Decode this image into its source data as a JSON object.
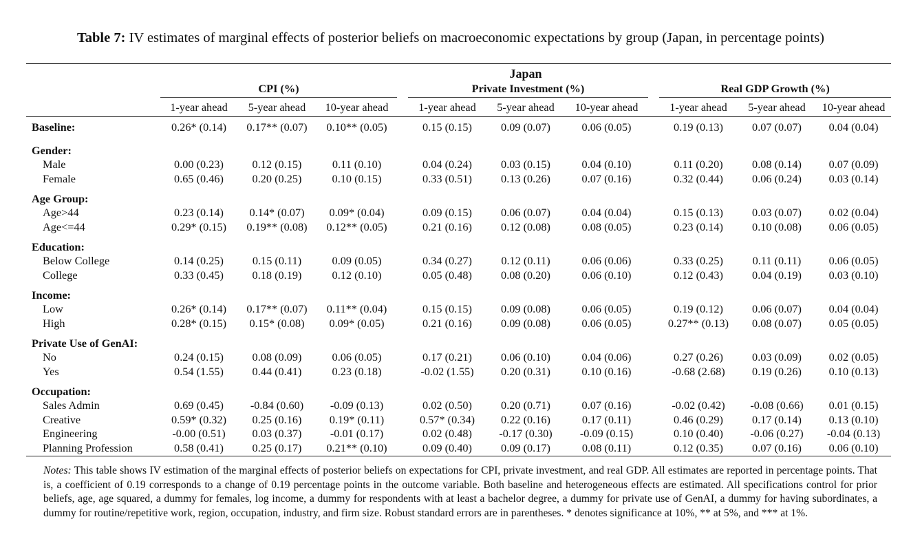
{
  "caption": {
    "label": "Table 7:",
    "text": "IV estimates of marginal effects of posterior beliefs on macroeconomic expectations by group (Japan, in percentage points)"
  },
  "header": {
    "country": "Japan",
    "groups": [
      "CPI (%)",
      "Private Investment (%)",
      "Real GDP Growth (%)"
    ],
    "horizons": [
      "1-year ahead",
      "5-year ahead",
      "10-year ahead",
      "1-year ahead",
      "5-year ahead",
      "10-year ahead",
      "1-year ahead",
      "5-year ahead",
      "10-year ahead"
    ]
  },
  "baseline": {
    "label": "Baseline:",
    "values": [
      "0.26* (0.14)",
      "0.17** (0.07)",
      "0.10** (0.05)",
      "0.15 (0.15)",
      "0.09 (0.07)",
      "0.06 (0.05)",
      "0.19 (0.13)",
      "0.07 (0.07)",
      "0.04 (0.04)"
    ]
  },
  "sections": [
    {
      "title": "Gender:",
      "rows": [
        {
          "label": "Male",
          "values": [
            "0.00 (0.23)",
            "0.12 (0.15)",
            "0.11 (0.10)",
            "0.04 (0.24)",
            "0.03 (0.15)",
            "0.04 (0.10)",
            "0.11 (0.20)",
            "0.08 (0.14)",
            "0.07 (0.09)"
          ]
        },
        {
          "label": "Female",
          "values": [
            "0.65 (0.46)",
            "0.20 (0.25)",
            "0.10 (0.15)",
            "0.33 (0.51)",
            "0.13 (0.26)",
            "0.07 (0.16)",
            "0.32 (0.44)",
            "0.06 (0.24)",
            "0.03 (0.14)"
          ]
        }
      ]
    },
    {
      "title": "Age Group:",
      "rows": [
        {
          "label": "Age>44",
          "values": [
            "0.23 (0.14)",
            "0.14* (0.07)",
            "0.09* (0.04)",
            "0.09 (0.15)",
            "0.06 (0.07)",
            "0.04 (0.04)",
            "0.15 (0.13)",
            "0.03 (0.07)",
            "0.02 (0.04)"
          ]
        },
        {
          "label": "Age<=44",
          "values": [
            "0.29* (0.15)",
            "0.19** (0.08)",
            "0.12** (0.05)",
            "0.21 (0.16)",
            "0.12 (0.08)",
            "0.08 (0.05)",
            "0.23 (0.14)",
            "0.10 (0.08)",
            "0.06 (0.05)"
          ]
        }
      ]
    },
    {
      "title": "Education:",
      "rows": [
        {
          "label": "Below College",
          "values": [
            "0.14 (0.25)",
            "0.15 (0.11)",
            "0.09 (0.05)",
            "0.34 (0.27)",
            "0.12 (0.11)",
            "0.06 (0.06)",
            "0.33 (0.25)",
            "0.11 (0.11)",
            "0.06 (0.05)"
          ]
        },
        {
          "label": "College",
          "values": [
            "0.33 (0.45)",
            "0.18 (0.19)",
            "0.12 (0.10)",
            "0.05 (0.48)",
            "0.08 (0.20)",
            "0.06 (0.10)",
            "0.12 (0.43)",
            "0.04 (0.19)",
            "0.03 (0.10)"
          ]
        }
      ]
    },
    {
      "title": "Income:",
      "rows": [
        {
          "label": "Low",
          "values": [
            "0.26* (0.14)",
            "0.17** (0.07)",
            "0.11** (0.04)",
            "0.15 (0.15)",
            "0.09 (0.08)",
            "0.06 (0.05)",
            "0.19 (0.12)",
            "0.06 (0.07)",
            "0.04 (0.04)"
          ]
        },
        {
          "label": "High",
          "values": [
            "0.28* (0.15)",
            "0.15* (0.08)",
            "0.09* (0.05)",
            "0.21 (0.16)",
            "0.09 (0.08)",
            "0.06 (0.05)",
            "0.27** (0.13)",
            "0.08 (0.07)",
            "0.05 (0.05)"
          ]
        }
      ]
    },
    {
      "title": "Private Use of GenAI:",
      "rows": [
        {
          "label": "No",
          "values": [
            "0.24 (0.15)",
            "0.08 (0.09)",
            "0.06 (0.05)",
            "0.17 (0.21)",
            "0.06 (0.10)",
            "0.04 (0.06)",
            "0.27 (0.26)",
            "0.03 (0.09)",
            "0.02 (0.05)"
          ]
        },
        {
          "label": "Yes",
          "values": [
            "0.54 (1.55)",
            "0.44 (0.41)",
            "0.23 (0.18)",
            "-0.02 (1.55)",
            "0.20 (0.31)",
            "0.10 (0.16)",
            "-0.68 (2.68)",
            "0.19 (0.26)",
            "0.10 (0.13)"
          ]
        }
      ]
    },
    {
      "title": "Occupation:",
      "rows": [
        {
          "label": "Sales Admin",
          "values": [
            "0.69 (0.45)",
            "-0.84 (0.60)",
            "-0.09 (0.13)",
            "0.02 (0.50)",
            "0.20 (0.71)",
            "0.07 (0.16)",
            "-0.02 (0.42)",
            "-0.08 (0.66)",
            "0.01 (0.15)"
          ]
        },
        {
          "label": "Creative",
          "values": [
            "0.59* (0.32)",
            "0.25 (0.16)",
            "0.19* (0.11)",
            "0.57* (0.34)",
            "0.22 (0.16)",
            "0.17 (0.11)",
            "0.46 (0.29)",
            "0.17 (0.14)",
            "0.13 (0.10)"
          ]
        },
        {
          "label": "Engineering",
          "values": [
            "-0.00 (0.51)",
            "0.03 (0.37)",
            "-0.01 (0.17)",
            "0.02 (0.48)",
            "-0.17 (0.30)",
            "-0.09 (0.15)",
            "0.10 (0.40)",
            "-0.06 (0.27)",
            "-0.04 (0.13)"
          ]
        },
        {
          "label": "Planning Profession",
          "values": [
            "0.58 (0.41)",
            "0.25 (0.17)",
            "0.21** (0.10)",
            "0.09 (0.40)",
            "0.09 (0.17)",
            "0.08 (0.11)",
            "0.12 (0.35)",
            "0.07 (0.16)",
            "0.06 (0.10)"
          ]
        }
      ]
    }
  ],
  "notes": {
    "label": "Notes:",
    "text": "This table shows IV estimation of the marginal effects of posterior beliefs on expectations for CPI, private investment, and real GDP. All estimates are reported in percentage points. That is, a coefficient of 0.19 corresponds to a change of 0.19 percentage points in the outcome variable. Both baseline and heterogeneous effects are estimated. All specifications control for prior beliefs, age, age squared, a dummy for females, log income, a dummy for respondents with at least a bachelor degree, a dummy for private use of GenAI, a dummy for having subordinates, a dummy for routine/repetitive work, region, occupation, industry, and firm size. Robust standard errors are in parentheses. * denotes significance at 10%, ** at 5%, and *** at 1%."
  }
}
